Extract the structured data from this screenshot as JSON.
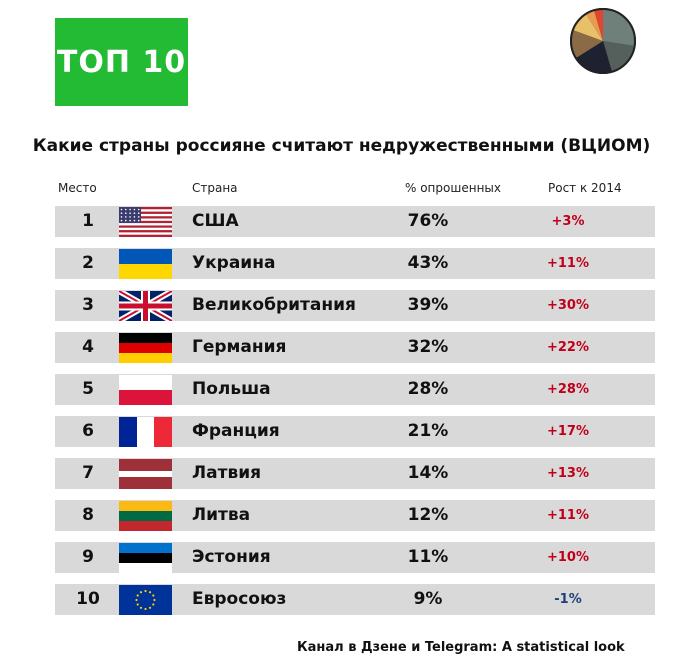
{
  "badge": "ТОП 10",
  "title": "Какие страны россияне считают недружественными (ВЦИОМ)",
  "headers": {
    "rank": "Место",
    "country": "Страна",
    "pct": "% опрошенных",
    "growth": "Рост к 2014"
  },
  "footer": "Канал в Дзене и Telegram: A statistical look",
  "colors": {
    "badge_bg": "#22bb33",
    "row_shade": "#d9d9d9",
    "growth_positive": "#c0001a",
    "growth_negative": "#1f3f7a"
  },
  "chart_data": {
    "type": "table",
    "title": "Какие страны россияне считают недружественными (ВЦИОМ)",
    "columns": [
      "Место",
      "Страна",
      "% опрошенных",
      "Рост к 2014"
    ],
    "rows": [
      {
        "rank": "1",
        "flag": "usa-flag",
        "country": "США",
        "pct": "76%",
        "growth": "+3%"
      },
      {
        "rank": "2",
        "flag": "ukraine-flag",
        "country": "Украина",
        "pct": "43%",
        "growth": "+11%"
      },
      {
        "rank": "3",
        "flag": "uk-flag",
        "country": "Великобритания",
        "pct": "39%",
        "growth": "+30%"
      },
      {
        "rank": "4",
        "flag": "germany-flag",
        "country": "Германия",
        "pct": "32%",
        "growth": "+22%"
      },
      {
        "rank": "5",
        "flag": "poland-flag",
        "country": "Польша",
        "pct": "28%",
        "growth": "+28%"
      },
      {
        "rank": "6",
        "flag": "france-flag",
        "country": "Франция",
        "pct": "21%",
        "growth": "+17%"
      },
      {
        "rank": "7",
        "flag": "latvia-flag",
        "country": "Латвия",
        "pct": "14%",
        "growth": "+13%"
      },
      {
        "rank": "8",
        "flag": "lithuania-flag",
        "country": "Литва",
        "pct": "12%",
        "growth": "+11%"
      },
      {
        "rank": "9",
        "flag": "estonia-flag",
        "country": "Эстония",
        "pct": "11%",
        "growth": "+10%"
      },
      {
        "rank": "10",
        "flag": "eu-flag",
        "country": "Евросоюз",
        "pct": "9%",
        "growth": "-1%"
      }
    ]
  }
}
